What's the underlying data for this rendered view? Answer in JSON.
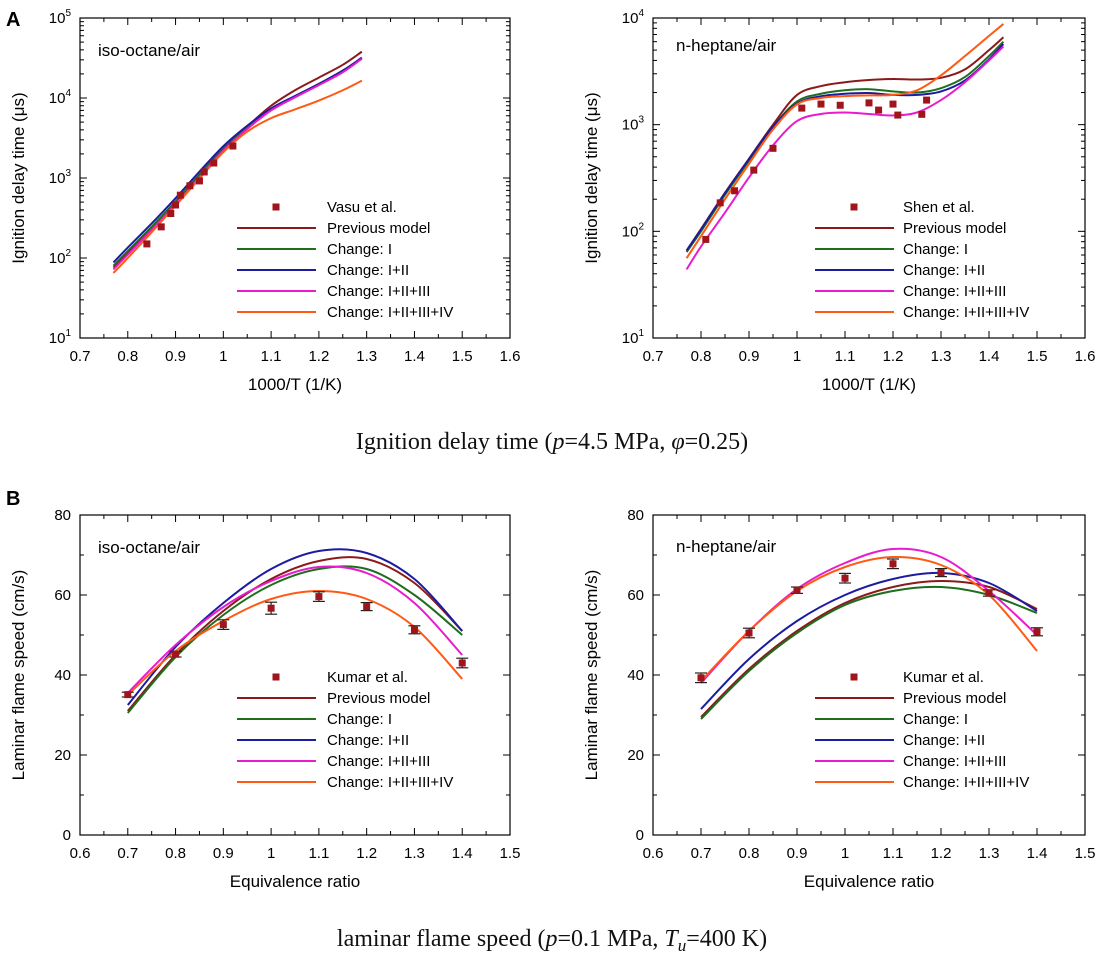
{
  "figure": {
    "panel_a_label": "A",
    "panel_b_label": "B",
    "caption_a": {
      "pre": "Ignition delay time (",
      "var1": "p",
      "mid": "=4.5 MPa, ",
      "var2": "φ",
      "post": "=0.25)"
    },
    "caption_b": {
      "pre": "laminar flame speed (",
      "var1": "p",
      "mid": "=0.1 MPa, ",
      "var2": "T",
      "sub": "u",
      "post": "=400 K)"
    }
  },
  "chart_data": [
    {
      "type": "line",
      "title": "iso-octane/air",
      "xlabel": "1000/T (1/K)",
      "ylabel": "Ignition delay time (μs)",
      "xlim": [
        0.7,
        1.6
      ],
      "xticks": [
        0.7,
        0.8,
        0.9,
        1.0,
        1.1,
        1.2,
        1.3,
        1.4,
        1.5,
        1.6
      ],
      "xtick_labels": [
        "0.7",
        "0.8",
        "0.9",
        "1",
        "1.1",
        "1.2",
        "1.3",
        "1.4",
        "1.5",
        "1.6"
      ],
      "yscale": "log",
      "ylim": [
        10,
        100000
      ],
      "ytick_base": "10",
      "ytick_exponents": [
        "1",
        "2",
        "3",
        "4",
        "5"
      ],
      "experiment": {
        "name": "Vasu et al.",
        "color": "#a0141c",
        "x": [
          0.84,
          0.87,
          0.89,
          0.9,
          0.91,
          0.93,
          0.95,
          0.96,
          0.98,
          1.02
        ],
        "y": [
          150,
          245,
          360,
          460,
          610,
          800,
          920,
          1190,
          1540,
          2510
        ]
      },
      "series": [
        {
          "name": "Previous model",
          "color": "#8b1a1a",
          "x": [
            0.77,
            0.8,
            0.85,
            0.9,
            0.95,
            1.0,
            1.05,
            1.1,
            1.15,
            1.2,
            1.25,
            1.29
          ],
          "y": [
            76,
            115,
            230,
            480,
            1050,
            2300,
            4400,
            8000,
            12500,
            18000,
            26000,
            38000
          ]
        },
        {
          "name": "Change: I",
          "color": "#1e6e1e",
          "x": [
            0.77,
            0.8,
            0.85,
            0.9,
            0.95,
            1.0,
            1.05,
            1.1,
            1.15,
            1.2,
            1.25,
            1.29
          ],
          "y": [
            80,
            122,
            245,
            510,
            1100,
            2350,
            4300,
            7200,
            10500,
            15000,
            22000,
            31000
          ]
        },
        {
          "name": "Change: I+II",
          "color": "#1c1ca0",
          "x": [
            0.77,
            0.8,
            0.85,
            0.9,
            0.95,
            1.0,
            1.05,
            1.1,
            1.15,
            1.2,
            1.25,
            1.29
          ],
          "y": [
            88,
            135,
            270,
            560,
            1200,
            2500,
            4500,
            7400,
            10600,
            15000,
            22000,
            32000
          ]
        },
        {
          "name": "Change: I+II+III",
          "color": "#e81ccd",
          "x": [
            0.77,
            0.8,
            0.85,
            0.9,
            0.95,
            1.0,
            1.05,
            1.1,
            1.15,
            1.2,
            1.25,
            1.29
          ],
          "y": [
            72,
            110,
            225,
            470,
            1020,
            2200,
            4100,
            7000,
            10200,
            14500,
            21000,
            31000
          ]
        },
        {
          "name": "Change: I+II+III+IV",
          "color": "#ff5a14",
          "x": [
            0.77,
            0.8,
            0.85,
            0.9,
            0.95,
            1.0,
            1.05,
            1.1,
            1.15,
            1.2,
            1.25,
            1.29
          ],
          "y": [
            65,
            100,
            210,
            450,
            980,
            2100,
            3800,
            5600,
            7200,
            9300,
            12500,
            16500
          ]
        }
      ]
    },
    {
      "type": "line",
      "title": "n-heptane/air",
      "xlabel": "1000/T (1/K)",
      "ylabel": "Ignition delay time (μs)",
      "xlim": [
        0.7,
        1.6
      ],
      "xticks": [
        0.7,
        0.8,
        0.9,
        1.0,
        1.1,
        1.2,
        1.3,
        1.4,
        1.5,
        1.6
      ],
      "xtick_labels": [
        "0.7",
        "0.8",
        "0.9",
        "1",
        "1.1",
        "1.2",
        "1.3",
        "1.4",
        "1.5",
        "1.6"
      ],
      "yscale": "log",
      "ylim": [
        10,
        10000
      ],
      "ytick_base": "10",
      "ytick_exponents": [
        "1",
        "2",
        "3",
        "4"
      ],
      "experiment": {
        "name": "Shen et al.",
        "color": "#a0141c",
        "x": [
          0.81,
          0.84,
          0.87,
          0.91,
          0.95,
          1.01,
          1.05,
          1.09,
          1.15,
          1.17,
          1.2,
          1.21,
          1.26,
          1.27
        ],
        "y": [
          84,
          185,
          240,
          375,
          600,
          1430,
          1560,
          1520,
          1600,
          1370,
          1560,
          1230,
          1250,
          1700
        ]
      },
      "series": [
        {
          "name": "Previous model",
          "color": "#8b1a1a",
          "x": [
            0.77,
            0.8,
            0.85,
            0.9,
            0.95,
            1.0,
            1.05,
            1.1,
            1.15,
            1.2,
            1.25,
            1.3,
            1.35,
            1.4,
            1.43
          ],
          "y": [
            66,
            105,
            230,
            480,
            1000,
            1900,
            2300,
            2500,
            2620,
            2680,
            2650,
            2750,
            3300,
            5000,
            6600
          ]
        },
        {
          "name": "Change: I",
          "color": "#1e6e1e",
          "x": [
            0.77,
            0.8,
            0.85,
            0.9,
            0.95,
            1.0,
            1.05,
            1.1,
            1.15,
            1.2,
            1.25,
            1.3,
            1.35,
            1.4,
            1.43
          ],
          "y": [
            64,
            100,
            220,
            460,
            950,
            1650,
            1950,
            2100,
            2150,
            2050,
            2000,
            2200,
            2800,
            4400,
            6000
          ]
        },
        {
          "name": "Change: I+II",
          "color": "#1c1ca0",
          "x": [
            0.77,
            0.8,
            0.85,
            0.9,
            0.95,
            1.0,
            1.05,
            1.1,
            1.15,
            1.2,
            1.25,
            1.3,
            1.35,
            1.4,
            1.43
          ],
          "y": [
            66,
            104,
            228,
            475,
            960,
            1580,
            1850,
            1950,
            1980,
            1900,
            1900,
            2050,
            2600,
            4100,
            5700
          ]
        },
        {
          "name": "Change: I+II+III",
          "color": "#e81ccd",
          "x": [
            0.77,
            0.8,
            0.85,
            0.9,
            0.95,
            1.0,
            1.05,
            1.1,
            1.15,
            1.2,
            1.25,
            1.3,
            1.35,
            1.4,
            1.43
          ],
          "y": [
            44,
            72,
            150,
            320,
            640,
            1080,
            1260,
            1300,
            1260,
            1220,
            1300,
            1700,
            2500,
            4000,
            5400
          ]
        },
        {
          "name": "Change: I+II+III+IV",
          "color": "#ff5a14",
          "x": [
            0.77,
            0.8,
            0.85,
            0.9,
            0.95,
            1.0,
            1.05,
            1.1,
            1.15,
            1.2,
            1.25,
            1.3,
            1.35,
            1.4,
            1.43
          ],
          "y": [
            56,
            90,
            200,
            430,
            900,
            1550,
            1780,
            1850,
            1880,
            1900,
            2100,
            2900,
            4400,
            6800,
            8800
          ]
        }
      ]
    },
    {
      "type": "line",
      "title": "iso-octane/air",
      "xlabel": "Equivalence ratio",
      "ylabel": "Laminar flame speed (cm/s)",
      "xlim": [
        0.6,
        1.5
      ],
      "xticks": [
        0.6,
        0.7,
        0.8,
        0.9,
        1.0,
        1.1,
        1.2,
        1.3,
        1.4,
        1.5
      ],
      "xtick_labels": [
        "0.6",
        "0.7",
        "0.8",
        "0.9",
        "1",
        "1.1",
        "1.2",
        "1.3",
        "1.4",
        "1.5"
      ],
      "yscale": "linear",
      "ylim": [
        0,
        80
      ],
      "yticks": [
        0,
        20,
        40,
        60,
        80
      ],
      "ytick_labels": [
        "0",
        "20",
        "40",
        "60",
        "80"
      ],
      "experiment": {
        "name": "Kumar et al.",
        "color": "#a0141c",
        "x": [
          0.7,
          0.8,
          0.9,
          1.0,
          1.1,
          1.2,
          1.3,
          1.4
        ],
        "y": [
          35.1,
          45.2,
          52.6,
          56.7,
          59.6,
          57.1,
          51.3,
          43.0
        ],
        "yerr": [
          0.6,
          0.7,
          1.2,
          1.5,
          1.2,
          1.0,
          1.0,
          1.2
        ]
      },
      "series": [
        {
          "name": "Previous model",
          "color": "#8b1a1a",
          "x": [
            0.7,
            0.8,
            0.9,
            1.0,
            1.1,
            1.2,
            1.3,
            1.4
          ],
          "y": [
            31,
            45,
            56,
            64,
            68.5,
            69,
            63,
            51
          ]
        },
        {
          "name": "Change: I",
          "color": "#1e6e1e",
          "x": [
            0.7,
            0.8,
            0.9,
            1.0,
            1.1,
            1.2,
            1.3,
            1.4
          ],
          "y": [
            30.5,
            44.5,
            55,
            62.5,
            66.5,
            66.5,
            60,
            50
          ]
        },
        {
          "name": "Change: I+II",
          "color": "#1c1ca0",
          "x": [
            0.7,
            0.8,
            0.9,
            1.0,
            1.1,
            1.2,
            1.3,
            1.4
          ],
          "y": [
            32.5,
            47,
            58,
            66.5,
            71,
            70.5,
            64,
            51
          ]
        },
        {
          "name": "Change: I+II+III",
          "color": "#e81ccd",
          "x": [
            0.7,
            0.8,
            0.9,
            1.0,
            1.1,
            1.2,
            1.3,
            1.4
          ],
          "y": [
            35.5,
            47.5,
            57,
            63.5,
            67,
            65.5,
            58,
            45
          ]
        },
        {
          "name": "Change: I+II+III+IV",
          "color": "#ff5a14",
          "x": [
            0.7,
            0.8,
            0.9,
            1.0,
            1.1,
            1.2,
            1.3,
            1.4
          ],
          "y": [
            35,
            46,
            53.5,
            59,
            61,
            59,
            52,
            39
          ]
        }
      ]
    },
    {
      "type": "line",
      "title": "n-heptane/air",
      "xlabel": "Equivalence ratio",
      "ylabel": "Laminar flame speed (cm/s)",
      "xlim": [
        0.6,
        1.5
      ],
      "xticks": [
        0.6,
        0.7,
        0.8,
        0.9,
        1.0,
        1.1,
        1.2,
        1.3,
        1.4,
        1.5
      ],
      "xtick_labels": [
        "0.6",
        "0.7",
        "0.8",
        "0.9",
        "1",
        "1.1",
        "1.2",
        "1.3",
        "1.4",
        "1.5"
      ],
      "yscale": "linear",
      "ylim": [
        0,
        80
      ],
      "yticks": [
        0,
        20,
        40,
        60,
        80
      ],
      "ytick_labels": [
        "0",
        "20",
        "40",
        "60",
        "80"
      ],
      "experiment": {
        "name": "Kumar et al.",
        "color": "#a0141c",
        "x": [
          0.7,
          0.8,
          0.9,
          1.0,
          1.1,
          1.2,
          1.3,
          1.4
        ],
        "y": [
          39.3,
          50.5,
          61.2,
          64.2,
          67.8,
          65.6,
          60.5,
          50.8
        ],
        "yerr": [
          1.2,
          1.2,
          0.8,
          1.2,
          1.2,
          1.0,
          0.8,
          1.0
        ]
      },
      "series": [
        {
          "name": "Previous model",
          "color": "#8b1a1a",
          "x": [
            0.7,
            0.8,
            0.9,
            1.0,
            1.1,
            1.2,
            1.3,
            1.4
          ],
          "y": [
            29.5,
            41.5,
            51,
            58,
            62,
            63.5,
            62,
            56.5
          ]
        },
        {
          "name": "Change: I",
          "color": "#1e6e1e",
          "x": [
            0.7,
            0.8,
            0.9,
            1.0,
            1.1,
            1.2,
            1.3,
            1.4
          ],
          "y": [
            29,
            41,
            50.5,
            57.5,
            61,
            62,
            60,
            55.5
          ]
        },
        {
          "name": "Change: I+II",
          "color": "#1c1ca0",
          "x": [
            0.7,
            0.8,
            0.9,
            1.0,
            1.1,
            1.2,
            1.3,
            1.4
          ],
          "y": [
            31.5,
            44,
            53.5,
            60,
            64,
            65.5,
            63,
            56
          ]
        },
        {
          "name": "Change: I+II+III",
          "color": "#e81ccd",
          "x": [
            0.7,
            0.8,
            0.9,
            1.0,
            1.1,
            1.2,
            1.3,
            1.4
          ],
          "y": [
            38,
            51,
            61.5,
            68,
            71.5,
            69.5,
            61,
            50
          ]
        },
        {
          "name": "Change: I+II+III+IV",
          "color": "#ff5a14",
          "x": [
            0.7,
            0.8,
            0.9,
            1.0,
            1.1,
            1.2,
            1.3,
            1.4
          ],
          "y": [
            38.5,
            51,
            61,
            67,
            69.5,
            67.5,
            60,
            46
          ]
        }
      ]
    }
  ]
}
